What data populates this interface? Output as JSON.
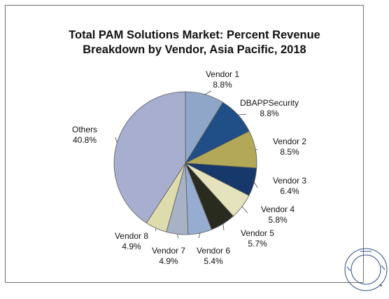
{
  "chart_data": {
    "type": "pie",
    "title": "Total PAM Solutions Market: Percent Revenue Breakdown by Vendor, Asia Pacific, 2018",
    "title_lines": [
      "Total PAM Solutions Market: Percent Revenue",
      "Breakdown by Vendor, Asia Pacific, 2018"
    ],
    "slices": [
      {
        "label": "Vendor 1",
        "value": 8.8,
        "value_label": "8.8%",
        "color": "#8fa6c8"
      },
      {
        "label": "DBAPPSecurity",
        "value": 8.8,
        "value_label": "8.8%",
        "color": "#1f4f86"
      },
      {
        "label": "Vendor 2",
        "value": 8.5,
        "value_label": "8.5%",
        "color": "#b3a857"
      },
      {
        "label": "Vendor 3",
        "value": 6.4,
        "value_label": "6.4%",
        "color": "#17386a"
      },
      {
        "label": "Vendor 4",
        "value": 5.8,
        "value_label": "5.8%",
        "color": "#e5e3bd"
      },
      {
        "label": "Vendor 5",
        "value": 5.7,
        "value_label": "5.7%",
        "color": "#2a2b1f"
      },
      {
        "label": "Vendor 6",
        "value": 5.4,
        "value_label": "5.4%",
        "color": "#96acd0"
      },
      {
        "label": "Vendor 7",
        "value": 4.9,
        "value_label": "4.9%",
        "color": "#a7b2c6"
      },
      {
        "label": "Vendor 8",
        "value": 4.9,
        "value_label": "4.9%",
        "color": "#dedbac"
      },
      {
        "label": "Others",
        "value": 40.8,
        "value_label": "40.8%",
        "color": "#a8aed0"
      }
    ],
    "start_angle": "12 o'clock",
    "direction": "clockwise",
    "legend": "none"
  },
  "watermark": {
    "text": "FROST & SULLIVAN",
    "color": "#2b4f86"
  },
  "footnote": "+"
}
